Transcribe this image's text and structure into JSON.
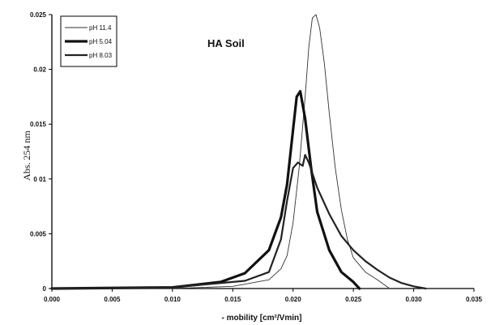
{
  "chart_data": {
    "type": "line",
    "title": "HA Soil",
    "xlabel": "- mobility [cm²/Vmin]",
    "ylabel": "Abs. 254 nm",
    "xlim": [
      0,
      0.035
    ],
    "ylim": [
      0,
      0.025
    ],
    "x_ticks": [
      "0.000",
      "0.005",
      "0.010",
      "0.015",
      "0.020",
      "0.025",
      "0.030",
      "0.035"
    ],
    "y_ticks": [
      "0",
      "0.005",
      "0 01",
      "0.015",
      "0.02",
      "0.025"
    ],
    "grid": false,
    "legend_position": "top-left",
    "series": [
      {
        "name": "pH 11.4",
        "color": "#333333",
        "points": [
          [
            0.0,
            0.0
          ],
          [
            0.01,
            0.0
          ],
          [
            0.015,
            0.0002
          ],
          [
            0.018,
            0.0008
          ],
          [
            0.019,
            0.0018
          ],
          [
            0.0195,
            0.003
          ],
          [
            0.02,
            0.006
          ],
          [
            0.0205,
            0.011
          ],
          [
            0.021,
            0.0175
          ],
          [
            0.0213,
            0.022
          ],
          [
            0.0216,
            0.0247
          ],
          [
            0.0219,
            0.025
          ],
          [
            0.0222,
            0.0238
          ],
          [
            0.0226,
            0.0205
          ],
          [
            0.023,
            0.016
          ],
          [
            0.0235,
            0.011
          ],
          [
            0.024,
            0.0072
          ],
          [
            0.0245,
            0.0045
          ],
          [
            0.025,
            0.0028
          ],
          [
            0.026,
            0.0015
          ],
          [
            0.027,
            0.0008
          ],
          [
            0.028,
            0.0
          ]
        ]
      },
      {
        "name": "pH 5.04",
        "color": "#111111",
        "points": [
          [
            0.0,
            0.0
          ],
          [
            0.01,
            0.0001
          ],
          [
            0.014,
            0.0006
          ],
          [
            0.016,
            0.0014
          ],
          [
            0.018,
            0.0035
          ],
          [
            0.019,
            0.0065
          ],
          [
            0.0195,
            0.0095
          ],
          [
            0.02,
            0.0145
          ],
          [
            0.0203,
            0.0175
          ],
          [
            0.0206,
            0.018
          ],
          [
            0.021,
            0.0155
          ],
          [
            0.0215,
            0.011
          ],
          [
            0.022,
            0.007
          ],
          [
            0.023,
            0.0035
          ],
          [
            0.024,
            0.0015
          ],
          [
            0.025,
            0.0006
          ],
          [
            0.0255,
            0.0
          ]
        ]
      },
      {
        "name": "pH 8.03",
        "color": "#222222",
        "points": [
          [
            0.0,
            0.0
          ],
          [
            0.01,
            0.0001
          ],
          [
            0.016,
            0.0007
          ],
          [
            0.018,
            0.0015
          ],
          [
            0.019,
            0.0045
          ],
          [
            0.0195,
            0.008
          ],
          [
            0.02,
            0.011
          ],
          [
            0.0204,
            0.0115
          ],
          [
            0.0208,
            0.0112
          ],
          [
            0.021,
            0.0122
          ],
          [
            0.0213,
            0.0115
          ],
          [
            0.022,
            0.0092
          ],
          [
            0.023,
            0.0068
          ],
          [
            0.024,
            0.0048
          ],
          [
            0.025,
            0.0035
          ],
          [
            0.026,
            0.0025
          ],
          [
            0.027,
            0.0017
          ],
          [
            0.028,
            0.001
          ],
          [
            0.029,
            0.0005
          ],
          [
            0.03,
            0.0002
          ],
          [
            0.031,
            0.0
          ]
        ]
      }
    ]
  }
}
